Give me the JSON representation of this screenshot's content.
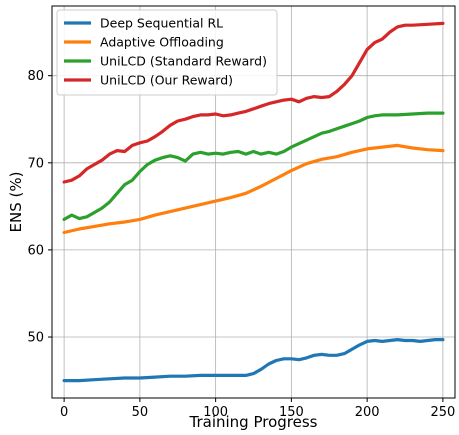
{
  "chart_data": {
    "type": "line",
    "title": "",
    "xlabel": "Training Progress",
    "ylabel": "ENS (%)",
    "xlim": [
      -8,
      258
    ],
    "ylim": [
      43,
      88
    ],
    "xticks": [
      0,
      50,
      100,
      150,
      200,
      250
    ],
    "yticks": [
      50,
      60,
      70,
      80
    ],
    "grid": true,
    "legend_position": "top-left",
    "series": [
      {
        "name": "Deep Sequential RL",
        "color": "#1f77b4",
        "x": [
          0,
          10,
          20,
          30,
          40,
          50,
          60,
          70,
          80,
          90,
          100,
          110,
          120,
          125,
          130,
          135,
          140,
          145,
          150,
          155,
          160,
          165,
          170,
          175,
          180,
          185,
          190,
          195,
          200,
          205,
          210,
          215,
          220,
          225,
          230,
          235,
          240,
          245,
          250
        ],
        "y": [
          45.0,
          45.0,
          45.1,
          45.2,
          45.3,
          45.3,
          45.4,
          45.5,
          45.5,
          45.6,
          45.6,
          45.6,
          45.6,
          45.8,
          46.3,
          46.9,
          47.3,
          47.5,
          47.5,
          47.4,
          47.6,
          47.9,
          48.0,
          47.9,
          47.9,
          48.1,
          48.6,
          49.1,
          49.5,
          49.6,
          49.5,
          49.6,
          49.7,
          49.6,
          49.6,
          49.5,
          49.6,
          49.7,
          49.7
        ]
      },
      {
        "name": "Adaptive Offloading",
        "color": "#ff7f0e",
        "x": [
          0,
          10,
          20,
          30,
          40,
          50,
          60,
          70,
          80,
          90,
          100,
          110,
          120,
          130,
          140,
          150,
          160,
          170,
          180,
          190,
          200,
          210,
          220,
          230,
          240,
          250
        ],
        "y": [
          62.0,
          62.4,
          62.7,
          63.0,
          63.2,
          63.5,
          64.0,
          64.4,
          64.8,
          65.2,
          65.6,
          66.0,
          66.5,
          67.3,
          68.2,
          69.1,
          69.9,
          70.4,
          70.7,
          71.2,
          71.6,
          71.8,
          72.0,
          71.7,
          71.5,
          71.4
        ]
      },
      {
        "name": "UniLCD (Standard Reward)",
        "color": "#2ca02c",
        "x": [
          0,
          5,
          10,
          15,
          20,
          25,
          30,
          35,
          40,
          45,
          50,
          55,
          60,
          65,
          70,
          75,
          80,
          85,
          90,
          95,
          100,
          105,
          110,
          115,
          120,
          125,
          130,
          135,
          140,
          145,
          150,
          155,
          160,
          165,
          170,
          175,
          180,
          185,
          190,
          195,
          200,
          205,
          210,
          220,
          230,
          240,
          250
        ],
        "y": [
          63.5,
          64.0,
          63.6,
          63.8,
          64.3,
          64.8,
          65.5,
          66.5,
          67.5,
          68.0,
          69.0,
          69.8,
          70.3,
          70.6,
          70.8,
          70.6,
          70.2,
          71.0,
          71.2,
          71.0,
          71.1,
          71.0,
          71.2,
          71.3,
          71.0,
          71.3,
          71.0,
          71.2,
          71.0,
          71.3,
          71.8,
          72.2,
          72.6,
          73.0,
          73.4,
          73.6,
          73.9,
          74.2,
          74.5,
          74.8,
          75.2,
          75.4,
          75.5,
          75.5,
          75.6,
          75.7,
          75.7
        ]
      },
      {
        "name": "UniLCD (Our Reward)",
        "color": "#d62728",
        "x": [
          0,
          5,
          10,
          15,
          20,
          25,
          30,
          35,
          40,
          45,
          50,
          55,
          60,
          65,
          70,
          75,
          80,
          85,
          90,
          95,
          100,
          105,
          110,
          115,
          120,
          125,
          130,
          135,
          140,
          145,
          150,
          155,
          160,
          165,
          170,
          175,
          180,
          185,
          190,
          195,
          200,
          205,
          210,
          215,
          220,
          225,
          230,
          240,
          250
        ],
        "y": [
          67.8,
          68.0,
          68.5,
          69.3,
          69.8,
          70.3,
          71.0,
          71.4,
          71.3,
          72.0,
          72.3,
          72.5,
          73.0,
          73.6,
          74.3,
          74.8,
          75.0,
          75.3,
          75.5,
          75.5,
          75.6,
          75.4,
          75.5,
          75.7,
          75.9,
          76.2,
          76.5,
          76.8,
          77.0,
          77.2,
          77.3,
          77.0,
          77.4,
          77.6,
          77.5,
          77.6,
          78.2,
          79.0,
          80.0,
          81.5,
          83.0,
          83.8,
          84.2,
          85.0,
          85.6,
          85.8,
          85.8,
          85.9,
          86.0
        ]
      }
    ]
  }
}
